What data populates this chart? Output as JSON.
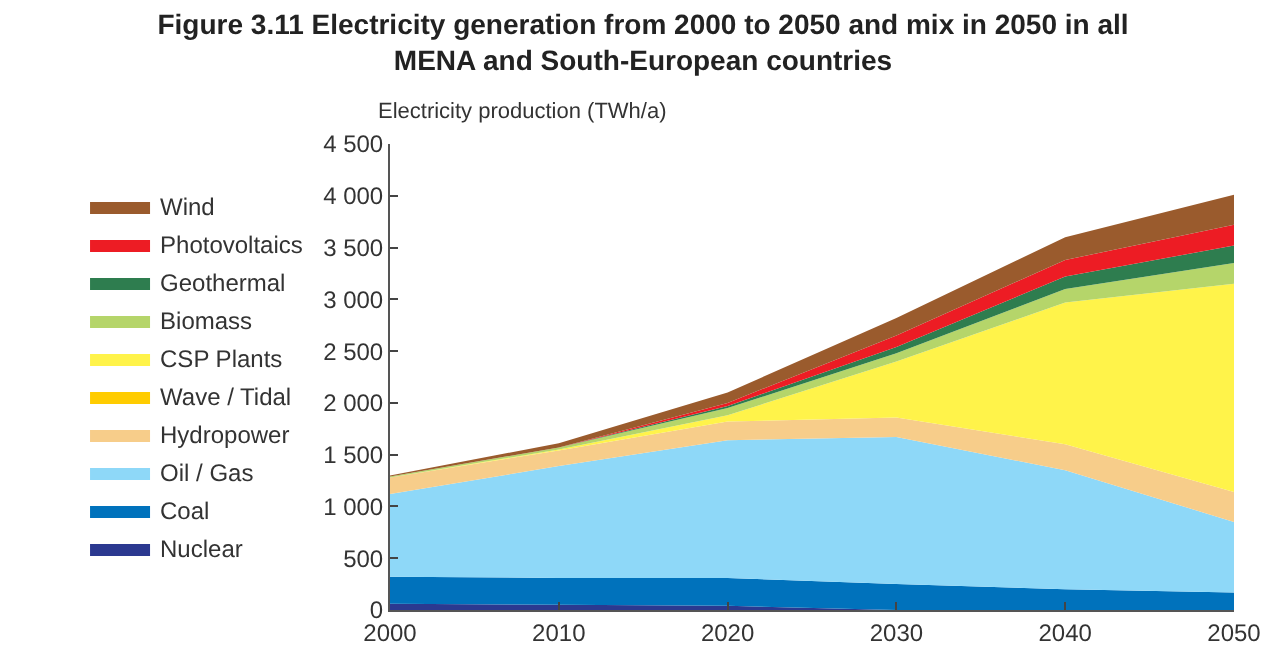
{
  "chart_data": {
    "type": "area",
    "stacked": true,
    "title": "Figure 3.11 Electricity generation from 2000 to 2050 and mix in 2050 in all MENA and South-European countries",
    "ylabel": "Electricity production (TWh/a)",
    "x": [
      2000,
      2010,
      2020,
      2030,
      2040,
      2050
    ],
    "series": [
      {
        "name": "Nuclear",
        "color": "#2b3990",
        "values": [
          60,
          50,
          40,
          0,
          0,
          0
        ]
      },
      {
        "name": "Coal",
        "color": "#0072bc",
        "values": [
          260,
          260,
          270,
          250,
          200,
          170
        ]
      },
      {
        "name": "Oil / Gas",
        "color": "#8ed8f8",
        "values": [
          800,
          1080,
          1330,
          1420,
          1150,
          680
        ]
      },
      {
        "name": "Hydropower",
        "color": "#f7cd8a",
        "values": [
          160,
          150,
          180,
          190,
          250,
          290
        ]
      },
      {
        "name": "Wave / Tidal",
        "color": "#ffcc00",
        "values": [
          null,
          null,
          null,
          null,
          null,
          null
        ]
      },
      {
        "name": "CSP Plants",
        "color": "#fff34a",
        "values": [
          0,
          10,
          60,
          540,
          1370,
          2010
        ]
      },
      {
        "name": "Biomass",
        "color": "#b5d56a",
        "values": [
          10,
          20,
          70,
          80,
          130,
          200
        ]
      },
      {
        "name": "Geothermal",
        "color": "#2e7d4f",
        "values": [
          0,
          0,
          20,
          60,
          120,
          170
        ]
      },
      {
        "name": "Photovoltaics",
        "color": "#ed1c24",
        "values": [
          0,
          0,
          30,
          110,
          160,
          200
        ]
      },
      {
        "name": "Wind",
        "color": "#9a5b2d",
        "values": [
          10,
          40,
          100,
          170,
          220,
          290
        ]
      }
    ],
    "xlim": [
      2000,
      2050
    ],
    "xticks": [
      2000,
      2010,
      2020,
      2030,
      2040,
      2050
    ],
    "ylim": [
      0,
      4500
    ],
    "yticks": [
      0,
      {
        "value": 500,
        "label": "500"
      },
      {
        "value": 1000,
        "label": "1 000"
      },
      {
        "value": 1500,
        "label": "1 500"
      },
      {
        "value": 2000,
        "label": "2 000"
      },
      {
        "value": 2500,
        "label": "2 500"
      },
      {
        "value": 3000,
        "label": "3 000"
      },
      {
        "value": 3500,
        "label": "3 500"
      },
      {
        "value": 4000,
        "label": "4 000"
      },
      {
        "value": 4500,
        "label": "4 500"
      }
    ],
    "legend": "left"
  }
}
